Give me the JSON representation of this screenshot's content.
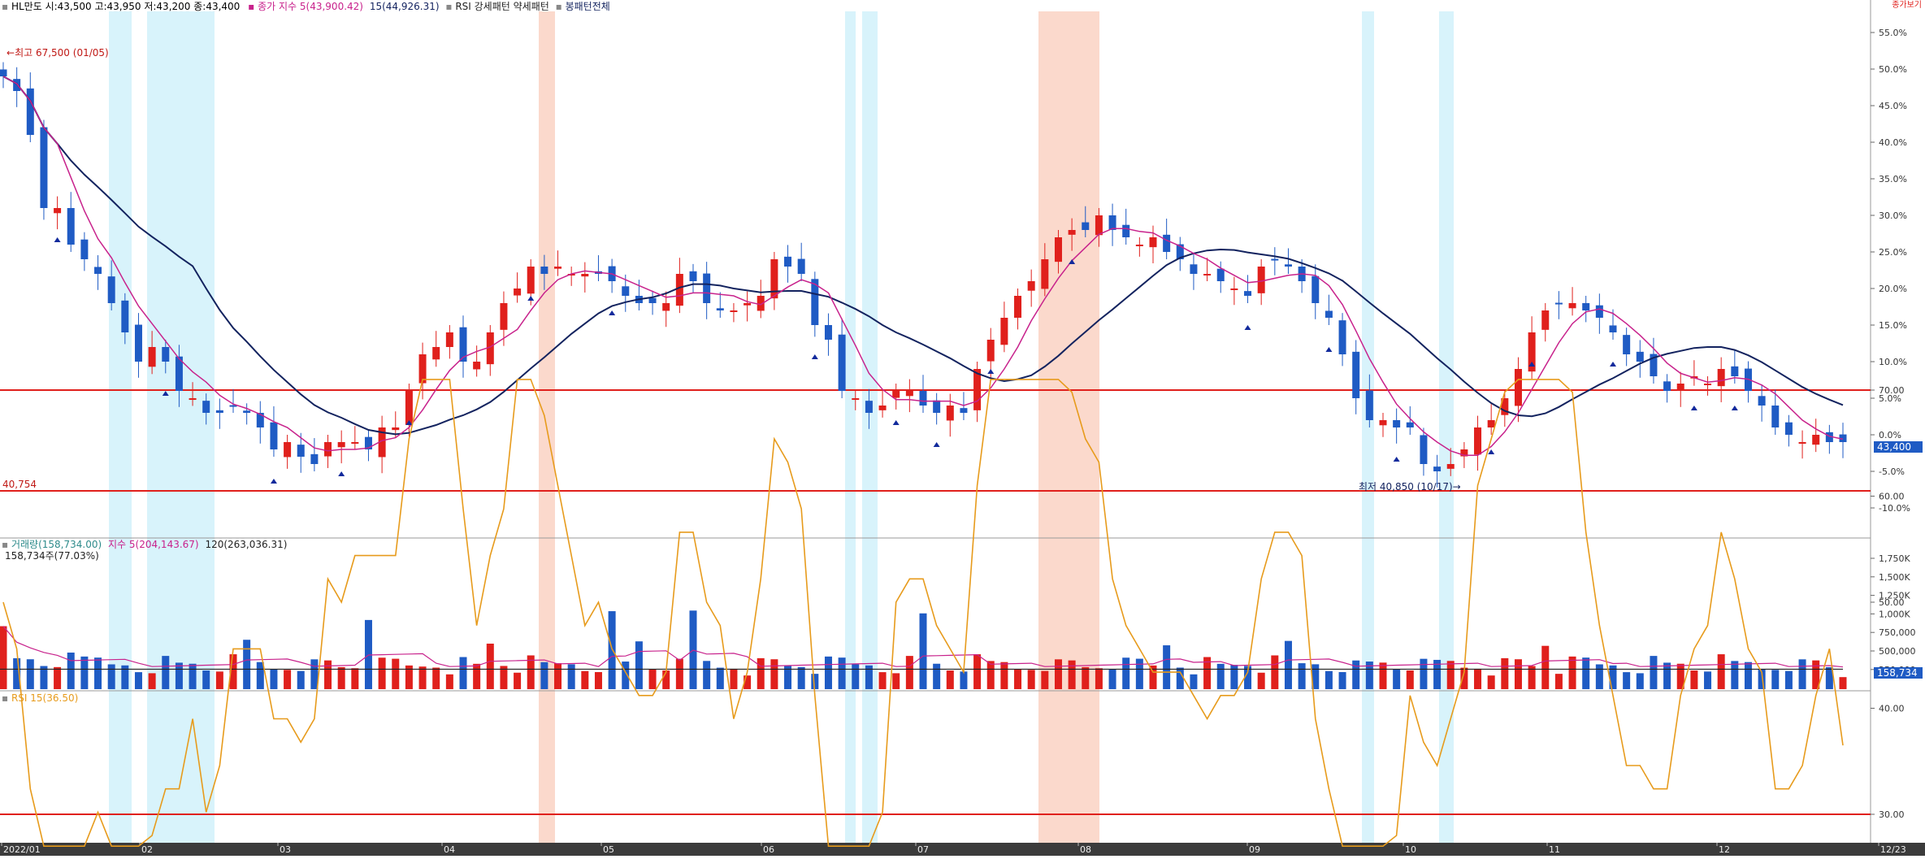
{
  "header": {
    "price_label": "HL만도 시:43,500 고:43,950 저:43,200 종:43,400",
    "ma5_label": "종가 지수 5(43,900.42)",
    "ma15_label": "15(44,926.31)",
    "pattern_label": "RSI 강세패턴  약세패턴",
    "all_label": "봉패턴전체",
    "corner_label": "종가보기"
  },
  "volume_header": {
    "vol_label": "거래량(158,734.00)",
    "vol_ma5_label": "지수 5(204,143.67)",
    "vol_ma120_label": "120(263,036.31)",
    "vol_sub_label": "158,734주(77.03%)"
  },
  "rsi_header": {
    "rsi_label": "RSI 15(36.50)"
  },
  "annotations": {
    "high_label": "최고 67,500 (01/05)",
    "low_label": "최저 40,850 (10/17)",
    "support_label": "40,754",
    "current_price": "43,400",
    "current_volume": "158,734"
  },
  "colors": {
    "up": "#e0201c",
    "down": "#1f5bc4",
    "ma5": "#c8228c",
    "ma15": "#13235f",
    "rsi": "#e79b1c",
    "hline": "#e0201c",
    "shade_blue": "#d8f3fb",
    "shade_red": "#fbd9cc",
    "arrow": "#122a9c"
  },
  "chart_data": [
    {
      "type": "candlestick",
      "title": "HL만도",
      "ylabel": "%",
      "y_axis_ticks": [
        "55.0%",
        "50.0%",
        "45.0%",
        "40.0%",
        "35.0%",
        "30.0%",
        "25.0%",
        "20.0%",
        "15.0%",
        "10.0%",
        "5.0%",
        "0.0%",
        "-5.0%",
        "-10.0%"
      ],
      "ylim_pct": [
        -11,
        56
      ],
      "x_axis_ticks": [
        "2022/01",
        "02",
        "03",
        "04",
        "05",
        "06",
        "07",
        "08",
        "09",
        "10",
        "11",
        "12",
        "12/23"
      ],
      "series_close_pct": [
        49,
        47,
        41,
        31,
        31,
        26,
        24,
        22,
        18,
        14,
        10,
        12,
        10,
        6,
        5,
        3,
        3,
        4,
        3,
        1,
        -2,
        -1,
        -3,
        -4,
        -1,
        -1,
        -1,
        -2,
        1,
        1,
        6,
        11,
        12,
        14,
        10,
        10,
        14,
        18,
        20,
        23,
        22,
        23,
        22,
        22,
        22,
        21,
        19,
        18,
        18,
        18,
        22,
        21,
        18,
        17,
        17,
        18,
        19,
        24,
        23,
        22,
        15,
        13,
        6,
        5,
        3,
        4,
        6,
        6,
        4,
        3,
        4,
        3,
        9,
        13,
        16,
        19,
        21,
        24,
        27,
        28,
        28,
        30,
        28,
        27,
        26,
        27,
        25,
        24,
        22,
        22,
        21,
        20,
        19,
        23,
        24,
        23,
        21,
        18,
        16,
        11,
        5,
        2,
        2,
        1,
        1,
        -4,
        -5,
        -4,
        -2,
        1,
        2,
        5,
        9,
        14,
        17,
        18,
        18,
        17,
        16,
        14,
        11,
        10,
        8,
        6,
        7,
        8,
        7,
        9,
        8,
        6,
        4,
        1,
        0,
        -1,
        0,
        -1,
        -1
      ],
      "ma5_end_pct": 0.5,
      "ma15_end_pct": 2,
      "high": {
        "value": 67500,
        "date": "01/05"
      },
      "low": {
        "value": 40850,
        "date": "10/17"
      },
      "support_line": 40754,
      "last_close": 43400
    },
    {
      "type": "bar",
      "title": "거래량",
      "y_axis_ticks": [
        "1,750K",
        "1,500K",
        "1,250K",
        "1,000K",
        "750,000",
        "500,000",
        "250,000"
      ],
      "ylim": [
        0,
        1800000
      ],
      "last_value": 158734,
      "ma5_last": 204143.67,
      "ma120_last": 263036.31
    },
    {
      "type": "line",
      "title": "RSI 15",
      "y_axis_ticks": [
        "70.00",
        "60.00",
        "50.00",
        "40.00",
        "30.00"
      ],
      "ylim": [
        25,
        72
      ],
      "reference_lines": [
        70,
        30
      ],
      "last_value": 36.5
    }
  ]
}
